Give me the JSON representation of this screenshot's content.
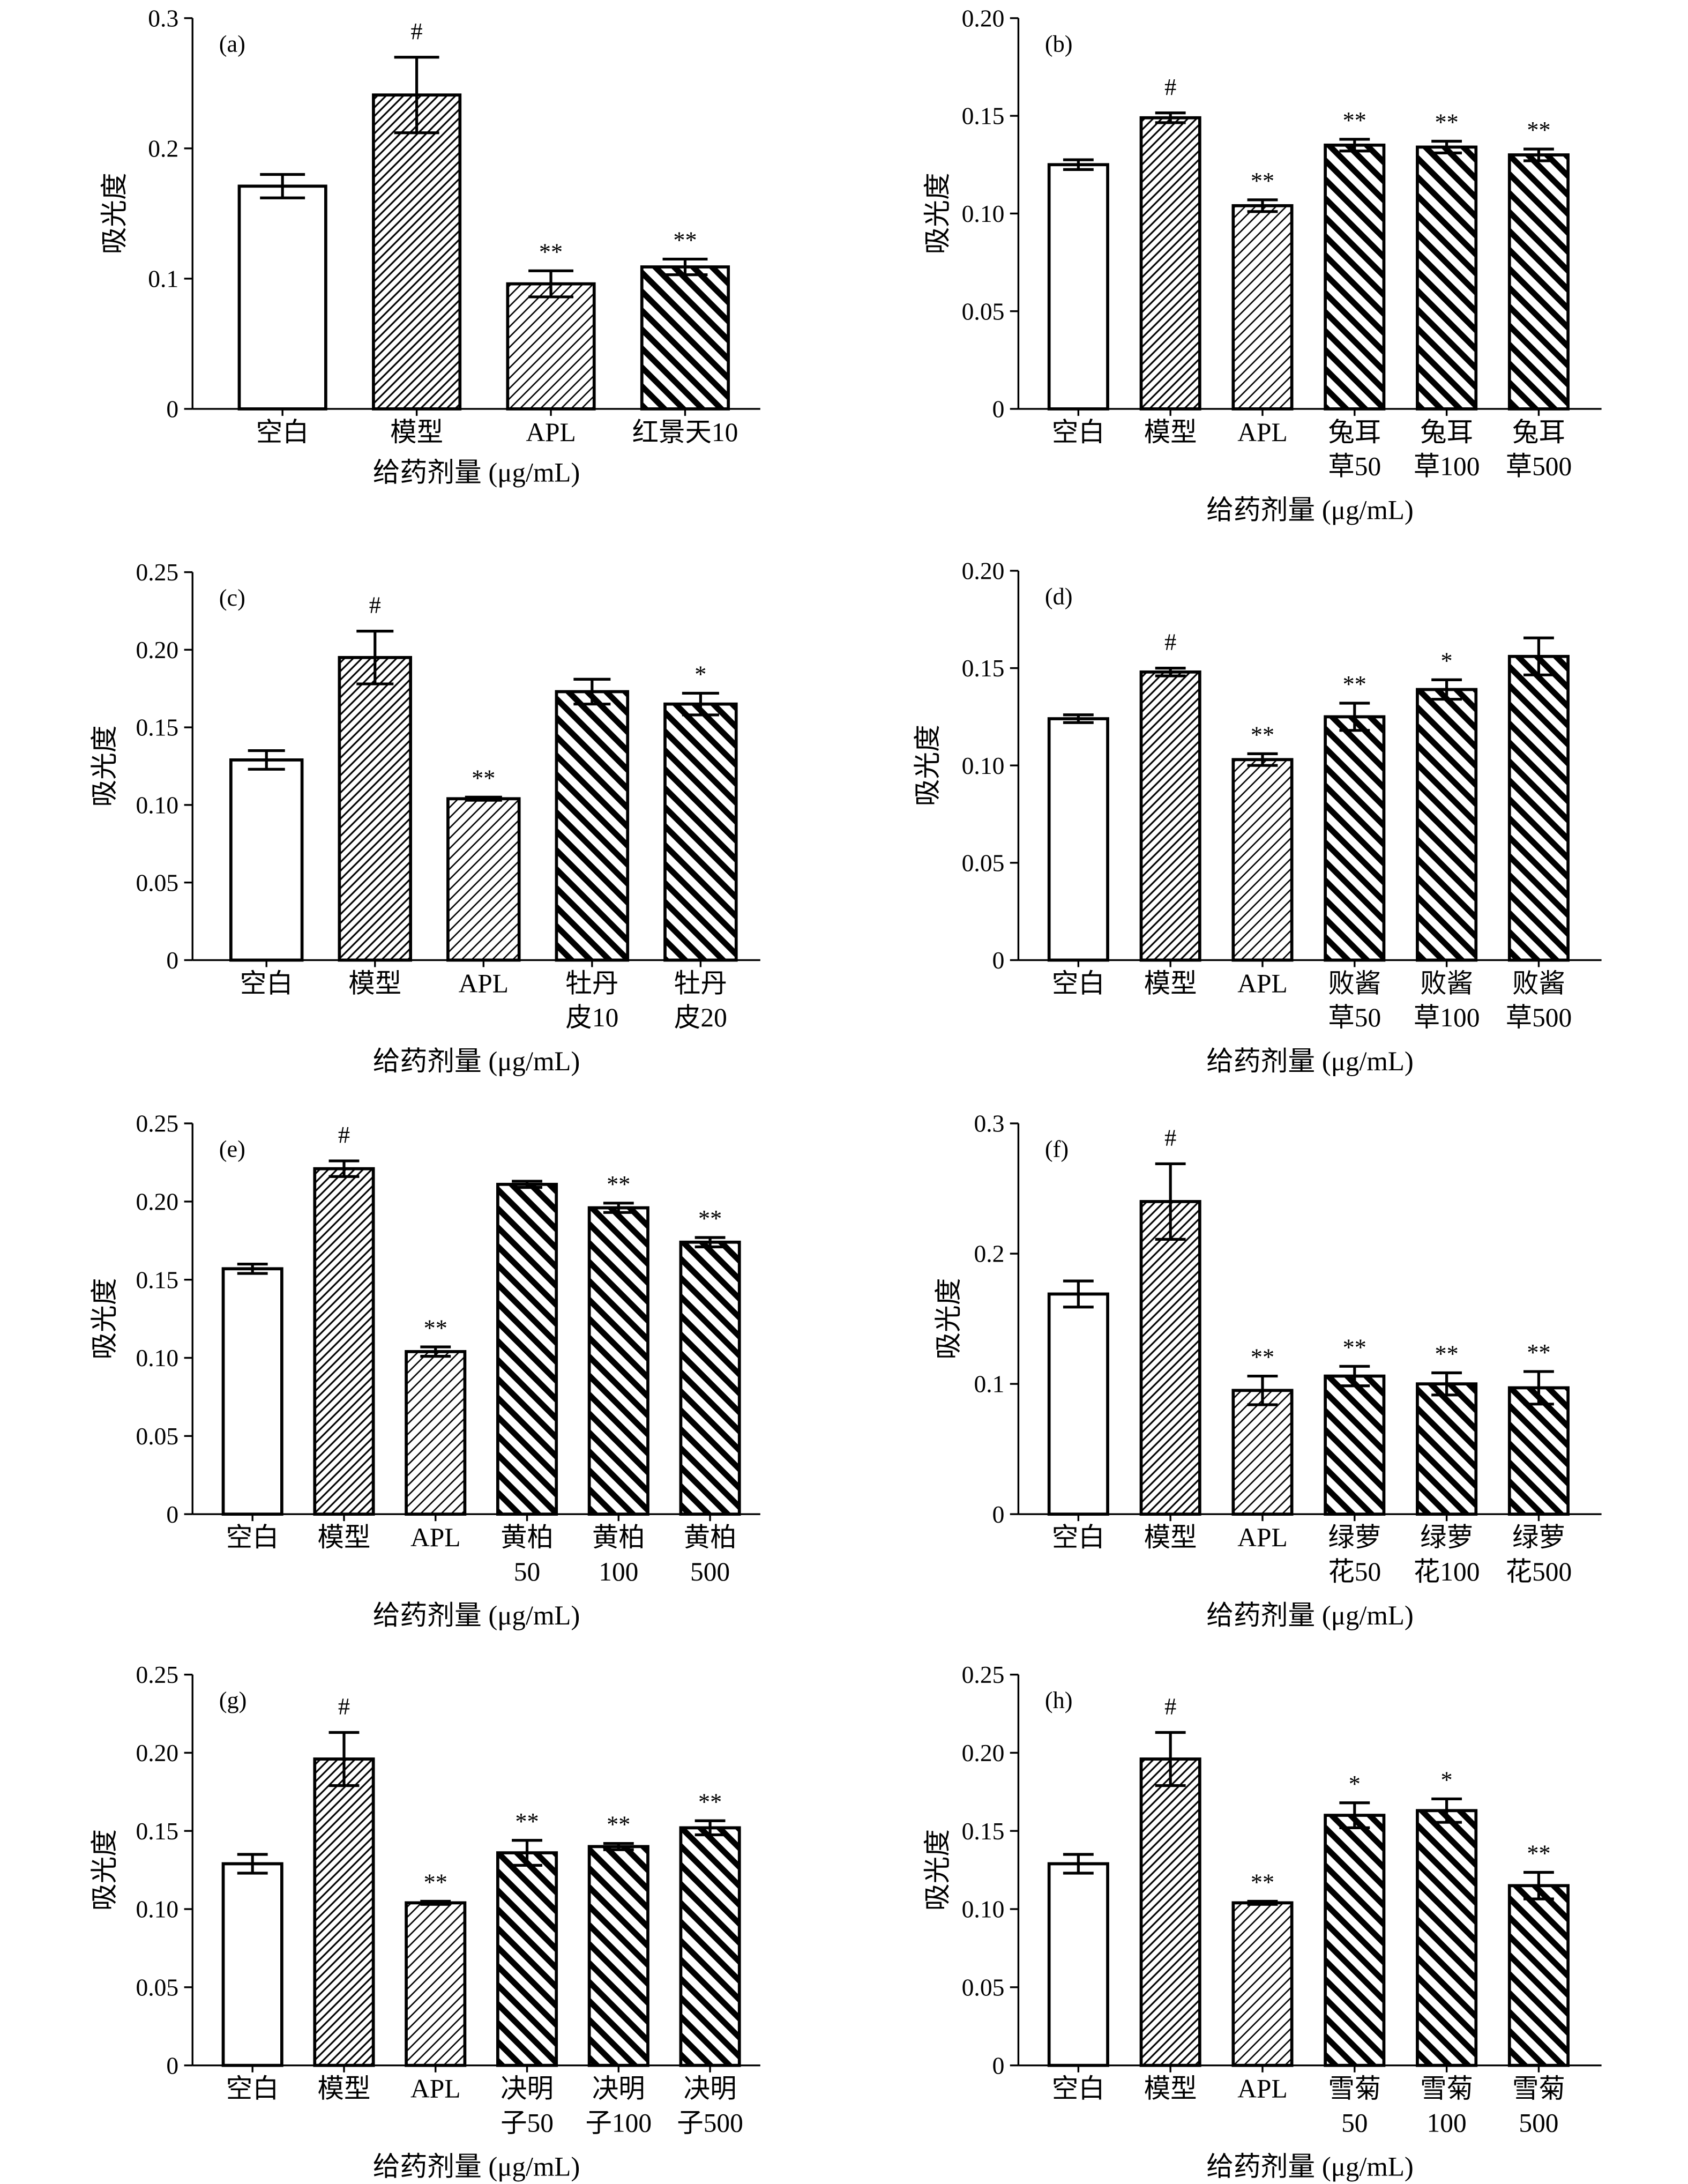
{
  "chart_data": [
    {
      "panel": "(a)",
      "type": "bar",
      "xlabel": "给药剂量 (μg/mL)",
      "ylabel": "吸光度",
      "ylim": [
        0,
        0.3
      ],
      "grid": false,
      "yticks": [
        "0",
        "0.1",
        "0.2",
        "0.3"
      ],
      "categories": [
        [
          "空白"
        ],
        [
          "模型"
        ],
        [
          "APL"
        ],
        [
          "红景天10"
        ]
      ],
      "values": [
        0.171,
        0.241,
        0.096,
        0.109
      ],
      "errors": [
        0.009,
        0.029,
        0.01,
        0.006
      ],
      "significance": [
        "",
        "#",
        "**",
        "**"
      ]
    },
    {
      "panel": "(b)",
      "type": "bar",
      "xlabel": "给药剂量 (μg/mL)",
      "ylabel": "吸光度",
      "ylim": [
        0,
        0.2
      ],
      "grid": false,
      "yticks": [
        "0",
        "0.05",
        "0.10",
        "0.15",
        "0.20"
      ],
      "categories": [
        [
          "空白"
        ],
        [
          "模型"
        ],
        [
          "APL"
        ],
        [
          "兔耳",
          "草50"
        ],
        [
          "兔耳",
          "草100"
        ],
        [
          "兔耳",
          "草500"
        ]
      ],
      "values": [
        0.125,
        0.149,
        0.104,
        0.135,
        0.134,
        0.13
      ],
      "errors": [
        0.0025,
        0.0025,
        0.003,
        0.003,
        0.003,
        0.003
      ],
      "significance": [
        "",
        "#",
        "**",
        "**",
        "**",
        "**"
      ]
    },
    {
      "panel": "(c)",
      "type": "bar",
      "xlabel": "给药剂量 (μg/mL)",
      "ylabel": "吸光度",
      "ylim": [
        0,
        0.25
      ],
      "grid": false,
      "yticks": [
        "0",
        "0.05",
        "0.10",
        "0.15",
        "0.20",
        "0.25"
      ],
      "categories": [
        [
          "空白"
        ],
        [
          "模型"
        ],
        [
          "APL"
        ],
        [
          "牡丹",
          "皮10"
        ],
        [
          "牡丹",
          "皮20"
        ]
      ],
      "values": [
        0.129,
        0.195,
        0.104,
        0.173,
        0.165
      ],
      "errors": [
        0.006,
        0.017,
        0.001,
        0.008,
        0.007
      ],
      "significance": [
        "",
        "#",
        "**",
        "",
        "*"
      ]
    },
    {
      "panel": "(d)",
      "type": "bar",
      "xlabel": "给药剂量 (μg/mL)",
      "ylabel": "吸光度",
      "ylim": [
        0,
        0.2
      ],
      "grid": false,
      "yticks": [
        "0",
        "0.05",
        "0.10",
        "0.15",
        "0.20"
      ],
      "categories": [
        [
          "空白"
        ],
        [
          "模型"
        ],
        [
          "APL"
        ],
        [
          "败酱",
          "草50"
        ],
        [
          "败酱",
          "草100"
        ],
        [
          "败酱",
          "草500"
        ]
      ],
      "values": [
        0.124,
        0.148,
        0.103,
        0.125,
        0.139,
        0.156
      ],
      "errors": [
        0.002,
        0.002,
        0.003,
        0.007,
        0.005,
        0.0095
      ],
      "significance": [
        "",
        "#",
        "**",
        "**",
        "*",
        ""
      ]
    },
    {
      "panel": "(e)",
      "type": "bar",
      "xlabel": "给药剂量 (μg/mL)",
      "ylabel": "吸光度",
      "ylim": [
        0,
        0.25
      ],
      "grid": false,
      "yticks": [
        "0",
        "0.05",
        "0.10",
        "0.15",
        "0.20",
        "0.25"
      ],
      "categories": [
        [
          "空白"
        ],
        [
          "模型"
        ],
        [
          "APL"
        ],
        [
          "黄柏",
          "50"
        ],
        [
          "黄柏",
          "100"
        ],
        [
          "黄柏",
          "500"
        ]
      ],
      "values": [
        0.157,
        0.221,
        0.104,
        0.211,
        0.196,
        0.174
      ],
      "errors": [
        0.003,
        0.005,
        0.003,
        0.002,
        0.003,
        0.003
      ],
      "significance": [
        "",
        "#",
        "**",
        "",
        "**",
        "**"
      ]
    },
    {
      "panel": "(f)",
      "type": "bar",
      "xlabel": "给药剂量 (μg/mL)",
      "ylabel": "吸光度",
      "ylim": [
        0,
        0.3
      ],
      "grid": false,
      "yticks": [
        "0",
        "0.1",
        "0.2",
        "0.3"
      ],
      "categories": [
        [
          "空白"
        ],
        [
          "模型"
        ],
        [
          "APL"
        ],
        [
          "绿萝",
          "花50"
        ],
        [
          "绿萝",
          "花100"
        ],
        [
          "绿萝",
          "花500"
        ]
      ],
      "values": [
        0.169,
        0.24,
        0.095,
        0.106,
        0.1,
        0.097
      ],
      "errors": [
        0.01,
        0.029,
        0.011,
        0.0075,
        0.0085,
        0.0125
      ],
      "significance": [
        "",
        "#",
        "**",
        "**",
        "**",
        "**"
      ]
    },
    {
      "panel": "(g)",
      "type": "bar",
      "xlabel": "给药剂量 (μg/mL)",
      "ylabel": "吸光度",
      "ylim": [
        0,
        0.25
      ],
      "grid": false,
      "yticks": [
        "0",
        "0.05",
        "0.10",
        "0.15",
        "0.20",
        "0.25"
      ],
      "categories": [
        [
          "空白"
        ],
        [
          "模型"
        ],
        [
          "APL"
        ],
        [
          "决明",
          "子50"
        ],
        [
          "决明",
          "子100"
        ],
        [
          "决明",
          "子500"
        ]
      ],
      "values": [
        0.129,
        0.196,
        0.104,
        0.136,
        0.14,
        0.152
      ],
      "errors": [
        0.006,
        0.017,
        0.001,
        0.008,
        0.002,
        0.0045
      ],
      "significance": [
        "",
        "#",
        "**",
        "**",
        "**",
        "**"
      ]
    },
    {
      "panel": "(h)",
      "type": "bar",
      "xlabel": "给药剂量 (μg/mL)",
      "ylabel": "吸光度",
      "ylim": [
        0,
        0.25
      ],
      "grid": false,
      "yticks": [
        "0",
        "0.05",
        "0.10",
        "0.15",
        "0.20",
        "0.25"
      ],
      "categories": [
        [
          "空白"
        ],
        [
          "模型"
        ],
        [
          "APL"
        ],
        [
          "雪菊",
          "50"
        ],
        [
          "雪菊",
          "100"
        ],
        [
          "雪菊",
          "500"
        ]
      ],
      "values": [
        0.129,
        0.196,
        0.104,
        0.16,
        0.163,
        0.115
      ],
      "errors": [
        0.006,
        0.017,
        0.001,
        0.008,
        0.0075,
        0.0085
      ],
      "significance": [
        "",
        "#",
        "**",
        "*",
        "*",
        "**"
      ]
    }
  ]
}
